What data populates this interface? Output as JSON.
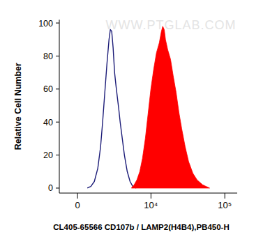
{
  "chart_data": {
    "type": "histogram_overlay",
    "watermark": "WWW.PTGLAB.COM",
    "x_label": "CL405-65566 CD107b / LAMP2(H4B4),PB450-H",
    "y_label": "Relative Cell Number",
    "xlim": [
      -1230,
      147000
    ],
    "xticks": [
      0,
      {
        "value": 10000,
        "label": "10⁴"
      },
      {
        "value": 100000,
        "label": "10⁵"
      }
    ],
    "ylim": [
      -3,
      102
    ],
    "yticks": [
      0,
      20,
      40,
      60,
      80,
      100
    ],
    "grid": false,
    "series": [
      {
        "type": "line",
        "color": "#1c1c78",
        "x": [
          640,
          880,
          1130,
          1390,
          1610,
          1780,
          1970,
          2160,
          2360,
          2490,
          2630,
          2780,
          2940,
          3100,
          3260,
          3430,
          3610,
          3890,
          4190,
          4620,
          5080,
          5560,
          6230
        ],
        "values": [
          0,
          1,
          4,
          12,
          25,
          40,
          58,
          75,
          90,
          96,
          95,
          85,
          70,
          62,
          55,
          48,
          40,
          30,
          20,
          10,
          4,
          1,
          0
        ]
      },
      {
        "type": "area",
        "color": "#ff0000",
        "x": [
          5310,
          5820,
          6370,
          6990,
          7630,
          8360,
          9130,
          9970,
          10900,
          11900,
          13000,
          13900,
          14500,
          15200,
          15800,
          16900,
          18500,
          20100,
          22000,
          24000,
          26200,
          29200,
          32500,
          37100,
          42200,
          50200,
          62400
        ],
        "values": [
          0,
          2,
          5,
          10,
          18,
          30,
          45,
          60,
          72,
          82,
          88,
          95,
          98,
          96,
          90,
          84,
          78,
          68,
          58,
          46,
          36,
          25,
          16,
          9,
          5,
          2,
          0
        ]
      }
    ]
  }
}
